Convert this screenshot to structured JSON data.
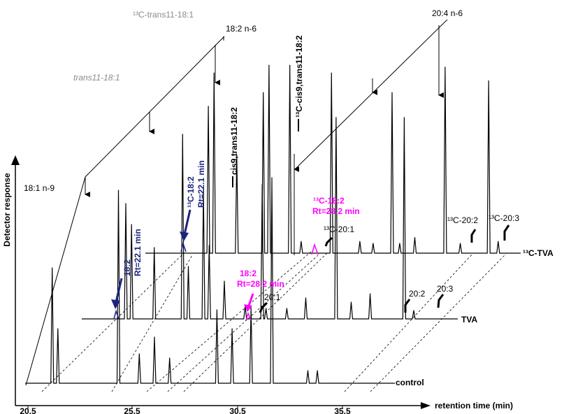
{
  "chart_data": {
    "type": "line",
    "title": "",
    "xlabel": "retention time (min)",
    "ylabel": "Detector response",
    "xlim": [
      20.5,
      40
    ],
    "x_ticks": [
      "20.5",
      "25.5",
      "30.5",
      "35.5"
    ],
    "grid": false,
    "legend": "none",
    "series": [
      {
        "name": "control"
      },
      {
        "name": "TVA"
      },
      {
        "name": "¹³C-TVA"
      }
    ],
    "peaks": {
      "control": [
        {
          "rt": 22.0,
          "height": 0.55,
          "label": "18:1 n-9"
        },
        {
          "rt": 22.3,
          "height": 0.26
        },
        {
          "rt": 25.5,
          "height": 0.92
        },
        {
          "rt": 26.6,
          "height": 0.14
        },
        {
          "rt": 27.4,
          "height": 0.22
        },
        {
          "rt": 28.2,
          "height": 0.12
        },
        {
          "rt": 30.7,
          "height": 0.35
        },
        {
          "rt": 31.5,
          "height": 0.26
        },
        {
          "rt": 32.5,
          "height": 0.36
        },
        {
          "rt": 33.6,
          "height": 0.98
        },
        {
          "rt": 35.5,
          "height": 0.06
        },
        {
          "rt": 36.0,
          "height": 0.06
        }
      ],
      "TVA": [
        {
          "rt": 22.9,
          "height": 0.55
        },
        {
          "rt": 23.2,
          "height": 0.45
        },
        {
          "rt": 24.4,
          "height": 0.34
        },
        {
          "rt": 25.9,
          "height": 0.88
        },
        {
          "rt": 26.2,
          "height": 0.25
        },
        {
          "rt": 27.0,
          "height": 0.62
        },
        {
          "rt": 27.3,
          "height": 0.35
        },
        {
          "rt": 28.1,
          "height": 0.18
        },
        {
          "rt": 29.2,
          "height": 0.06
        },
        {
          "rt": 30.1,
          "height": 0.64
        },
        {
          "rt": 30.3,
          "height": 0.05
        },
        {
          "rt": 31.4,
          "height": 0.05
        },
        {
          "rt": 32.4,
          "height": 0.1
        },
        {
          "rt": 34.0,
          "height": 0.96
        },
        {
          "rt": 34.8,
          "height": 0.08
        },
        {
          "rt": 35.8,
          "height": 0.12
        },
        {
          "rt": 37.6,
          "height": 0.96
        },
        {
          "rt": 38.1,
          "height": 0.04
        }
      ],
      "13C-TVA": [
        {
          "rt": 23.9,
          "height": 0.75
        },
        {
          "rt": 24.2,
          "height": 0.92
        },
        {
          "rt": 25.4,
          "height": 0.5
        },
        {
          "rt": 26.8,
          "height": 0.82
        },
        {
          "rt": 27.1,
          "height": 0.96
        },
        {
          "rt": 28.2,
          "height": 0.96
        },
        {
          "rt": 28.8,
          "height": 0.06
        },
        {
          "rt": 30.4,
          "height": 0.92
        },
        {
          "rt": 31.9,
          "height": 0.06
        },
        {
          "rt": 32.6,
          "height": 0.05
        },
        {
          "rt": 33.6,
          "height": 0.82
        },
        {
          "rt": 34.0,
          "height": 0.05
        },
        {
          "rt": 34.8,
          "height": 0.08
        },
        {
          "rt": 36.4,
          "height": 0.95
        },
        {
          "rt": 37.2,
          "height": 0.05
        },
        {
          "rt": 38.7,
          "height": 0.88
        },
        {
          "rt": 39.2,
          "height": 0.06
        }
      ]
    },
    "trace_labels": [
      "control",
      "TVA",
      "¹³C-TVA"
    ],
    "top_labels": [
      "18:1 n-9",
      "trans11-18:1",
      "¹³C-trans11-18:1",
      "18:2 n-6",
      "20:4 n-6"
    ],
    "rotated_labels": [
      "cis9,trans11-18:2",
      "¹³C-cis9,trans11-18:2"
    ],
    "annotations": {
      "tva_18_2": {
        "name": "18:2",
        "rt": "Rt=22.1 min",
        "color": "#1a237e"
      },
      "c13_18_2": {
        "name": "¹³C-18:2",
        "rt": "Rt=22.1 min",
        "color": "#1a237e"
      },
      "tva_18_2_magenta": {
        "name": "18:2",
        "rt": "Rt=28.2 min",
        "color": "#ff00ff"
      },
      "c13_18_2_magenta": {
        "name": "¹³C-18:2",
        "rt": "Rt=28.2 min",
        "color": "#ff00ff"
      },
      "tva_20_1": "20:1",
      "c13_20_1": "¹³C-20:1",
      "tva_20_2": "20:2",
      "tva_20_3": "20:3",
      "c13_20_2": "¹³C-20:2",
      "c13_20_3": "¹³C-20:3"
    },
    "colors": {
      "trace": "#000000",
      "gray_peaks": "#8a8a8a",
      "navy": "#1a237e",
      "magenta": "#ff00ff"
    }
  }
}
